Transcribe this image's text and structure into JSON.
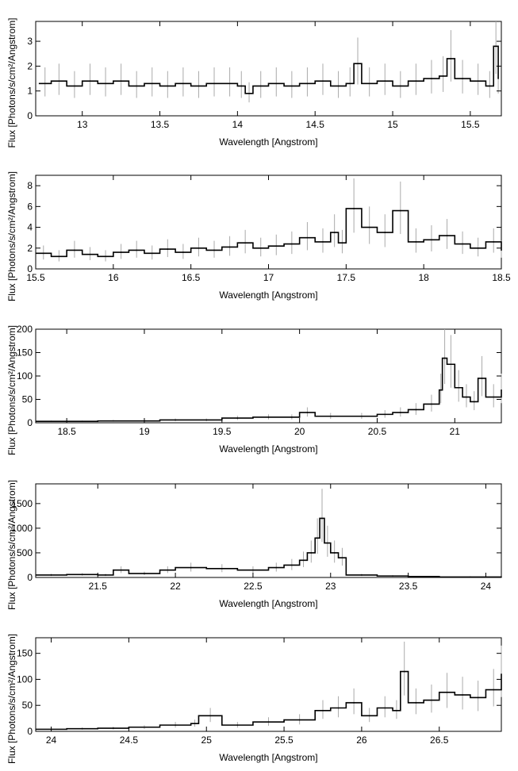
{
  "chart_data": [
    {
      "type": "line",
      "xlabel": "Wavelength [Angstrom]",
      "ylabel": "Flux [Photons/s/cm²/Angstrom]",
      "xlim": [
        12.7,
        15.7
      ],
      "ylim": [
        0,
        3.8
      ],
      "xticks": [
        "13",
        "13.5",
        "14",
        "14.5",
        "15",
        "15.5"
      ],
      "yticks": [
        "0",
        "1",
        "2",
        "3"
      ],
      "grid": false,
      "series": [
        {
          "x": [
            12.72,
            12.8,
            12.9,
            13.0,
            13.1,
            13.2,
            13.3,
            13.4,
            13.5,
            13.6,
            13.7,
            13.8,
            13.9,
            14.0,
            14.05,
            14.1,
            14.2,
            14.3,
            14.4,
            14.5,
            14.6,
            14.7,
            14.75,
            14.8,
            14.9,
            15.0,
            15.1,
            15.2,
            15.3,
            15.35,
            15.4,
            15.5,
            15.6,
            15.65,
            15.68
          ],
          "y": [
            1.3,
            1.4,
            1.2,
            1.4,
            1.3,
            1.4,
            1.2,
            1.3,
            1.2,
            1.3,
            1.2,
            1.3,
            1.3,
            1.2,
            0.9,
            1.2,
            1.3,
            1.2,
            1.3,
            1.4,
            1.2,
            1.3,
            2.1,
            1.3,
            1.4,
            1.2,
            1.4,
            1.5,
            1.6,
            2.3,
            1.5,
            1.4,
            1.2,
            2.8,
            1.5
          ]
        }
      ]
    },
    {
      "type": "line",
      "xlabel": "Wavelength [Angstrom]",
      "ylabel": "Flux [Photons/s/cm²/Angstrom]",
      "xlim": [
        15.5,
        18.5
      ],
      "ylim": [
        0,
        9
      ],
      "xticks": [
        "15.5",
        "16",
        "16.5",
        "17",
        "17.5",
        "18",
        "18.5"
      ],
      "yticks": [
        "0",
        "2",
        "4",
        "6",
        "8"
      ],
      "grid": false,
      "series": [
        {
          "x": [
            15.5,
            15.6,
            15.7,
            15.8,
            15.9,
            16.0,
            16.1,
            16.2,
            16.3,
            16.4,
            16.5,
            16.6,
            16.7,
            16.8,
            16.9,
            17.0,
            17.1,
            17.2,
            17.3,
            17.4,
            17.45,
            17.5,
            17.6,
            17.7,
            17.8,
            17.9,
            18.0,
            18.1,
            18.2,
            18.3,
            18.4,
            18.5
          ],
          "y": [
            1.5,
            1.2,
            1.8,
            1.4,
            1.2,
            1.6,
            1.8,
            1.5,
            1.9,
            1.6,
            2.0,
            1.8,
            2.1,
            2.5,
            2.0,
            2.2,
            2.4,
            3.0,
            2.6,
            3.5,
            2.5,
            5.8,
            4.0,
            3.5,
            5.6,
            2.6,
            2.8,
            3.2,
            2.4,
            2.0,
            2.6,
            1.8
          ]
        }
      ]
    },
    {
      "type": "line",
      "xlabel": "Wavelength [Angstrom]",
      "ylabel": "Flux [Photons/s/cm²/Angstrom]",
      "xlim": [
        18.3,
        21.3
      ],
      "ylim": [
        0,
        200
      ],
      "xticks": [
        "18.5",
        "19",
        "19.5",
        "20",
        "20.5",
        "21"
      ],
      "yticks": [
        "0",
        "50",
        "100",
        "150",
        "200"
      ],
      "grid": false,
      "series": [
        {
          "x": [
            18.3,
            18.5,
            18.7,
            18.9,
            19.1,
            19.3,
            19.5,
            19.7,
            19.9,
            20.0,
            20.1,
            20.3,
            20.5,
            20.6,
            20.7,
            20.8,
            20.9,
            20.92,
            20.95,
            21.0,
            21.05,
            21.1,
            21.15,
            21.2,
            21.3
          ],
          "y": [
            3,
            3,
            4,
            4,
            6,
            6,
            10,
            12,
            12,
            22,
            14,
            14,
            18,
            22,
            28,
            40,
            70,
            138,
            125,
            75,
            55,
            45,
            95,
            55,
            70
          ]
        }
      ]
    },
    {
      "type": "line",
      "xlabel": "Wavelength [Angstrom]",
      "ylabel": "Flux [Photons/s/cm²/Angstrom]",
      "xlim": [
        21.1,
        24.1
      ],
      "ylim": [
        0,
        1900
      ],
      "xticks": [
        "21.5",
        "22",
        "22.5",
        "23",
        "23.5",
        "24"
      ],
      "yticks": [
        "0",
        "500",
        "1000",
        "1500"
      ],
      "grid": false,
      "series": [
        {
          "x": [
            21.1,
            21.3,
            21.5,
            21.6,
            21.7,
            21.9,
            22.0,
            22.2,
            22.4,
            22.6,
            22.7,
            22.8,
            22.85,
            22.9,
            22.93,
            22.96,
            23.0,
            23.05,
            23.1,
            23.3,
            23.5,
            23.7,
            24.1
          ],
          "y": [
            50,
            60,
            50,
            150,
            80,
            150,
            200,
            180,
            150,
            200,
            250,
            350,
            500,
            800,
            1200,
            700,
            500,
            400,
            50,
            30,
            20,
            10,
            10
          ]
        }
      ]
    },
    {
      "type": "line",
      "xlabel": "Wavelength [Angstrom]",
      "ylabel": "Flux [Photons/s/cm²/Angstrom]",
      "xlim": [
        23.9,
        26.9
      ],
      "ylim": [
        0,
        180
      ],
      "xticks": [
        "24",
        "24.5",
        "25",
        "25.5",
        "26",
        "26.5"
      ],
      "yticks": [
        "0",
        "50",
        "100",
        "150"
      ],
      "grid": false,
      "series": [
        {
          "x": [
            23.9,
            24.1,
            24.3,
            24.5,
            24.7,
            24.9,
            24.95,
            25.1,
            25.3,
            25.5,
            25.7,
            25.8,
            25.9,
            26.0,
            26.1,
            26.2,
            26.25,
            26.3,
            26.4,
            26.5,
            26.6,
            26.7,
            26.8,
            26.9
          ],
          "y": [
            4,
            5,
            6,
            8,
            12,
            15,
            30,
            12,
            18,
            22,
            40,
            45,
            55,
            30,
            45,
            40,
            115,
            55,
            60,
            75,
            70,
            65,
            80,
            110
          ]
        }
      ]
    }
  ]
}
